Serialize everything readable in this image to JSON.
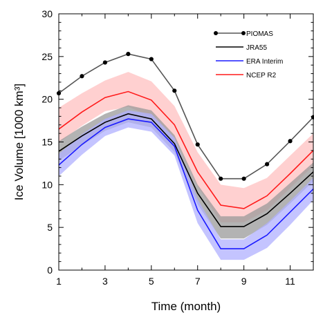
{
  "chart_data": {
    "type": "line",
    "xlabel": "Time (month)",
    "ylabel": "Ice Volume [1000 km³]",
    "xlim": [
      1,
      12
    ],
    "ylim": [
      0,
      30
    ],
    "x_ticks": [
      1,
      3,
      5,
      7,
      9,
      11
    ],
    "y_ticks": [
      0,
      5,
      10,
      15,
      20,
      25,
      30
    ],
    "grid": false,
    "legend_position": "top-right",
    "x": [
      1,
      2,
      3,
      4,
      5,
      6,
      7,
      8,
      9,
      10,
      11,
      12
    ],
    "series": [
      {
        "name": "PIOMAS",
        "color": "#555555",
        "markers": true,
        "values": [
          20.7,
          22.7,
          24.3,
          25.3,
          24.7,
          21.0,
          14.7,
          10.7,
          10.7,
          12.4,
          15.1,
          17.9
        ]
      },
      {
        "name": "JRA55",
        "color": "#000000",
        "band_color": "#9a9a9a",
        "values": [
          13.9,
          15.7,
          17.3,
          18.3,
          17.7,
          14.8,
          9.0,
          5.1,
          5.1,
          6.6,
          9.0,
          11.5
        ],
        "lower": [
          12.8,
          14.6,
          16.3,
          17.3,
          16.7,
          13.8,
          7.7,
          3.7,
          3.7,
          5.3,
          7.8,
          10.4
        ],
        "upper": [
          15.1,
          16.8,
          18.3,
          19.3,
          18.7,
          15.8,
          10.0,
          6.3,
          6.3,
          7.8,
          10.2,
          12.6
        ]
      },
      {
        "name": "ERA Interim",
        "color": "#1a1aff",
        "band_color": "#b0b0ff",
        "values": [
          12.3,
          14.7,
          16.7,
          17.7,
          17.3,
          14.5,
          7.0,
          2.5,
          2.5,
          4.1,
          6.8,
          9.5
        ],
        "lower": [
          11.0,
          13.5,
          15.7,
          16.7,
          16.2,
          13.4,
          5.5,
          1.2,
          1.2,
          2.6,
          5.3,
          8.2
        ],
        "upper": [
          13.6,
          15.9,
          17.7,
          18.7,
          18.3,
          15.5,
          8.3,
          3.6,
          3.6,
          5.5,
          8.1,
          10.8
        ]
      },
      {
        "name": "NCEP R2",
        "color": "#ff1a1a",
        "band_color": "#ffc0c0",
        "values": [
          16.5,
          18.5,
          20.2,
          20.9,
          19.9,
          17.0,
          11.5,
          7.6,
          7.2,
          8.7,
          11.3,
          14.0
        ],
        "lower": [
          14.9,
          16.9,
          18.6,
          19.1,
          18.0,
          15.5,
          9.8,
          5.6,
          5.6,
          7.0,
          9.6,
          12.2
        ],
        "upper": [
          19.0,
          20.7,
          22.2,
          23.2,
          22.1,
          19.2,
          13.8,
          10.0,
          9.6,
          10.8,
          13.4,
          16.0
        ]
      }
    ]
  }
}
